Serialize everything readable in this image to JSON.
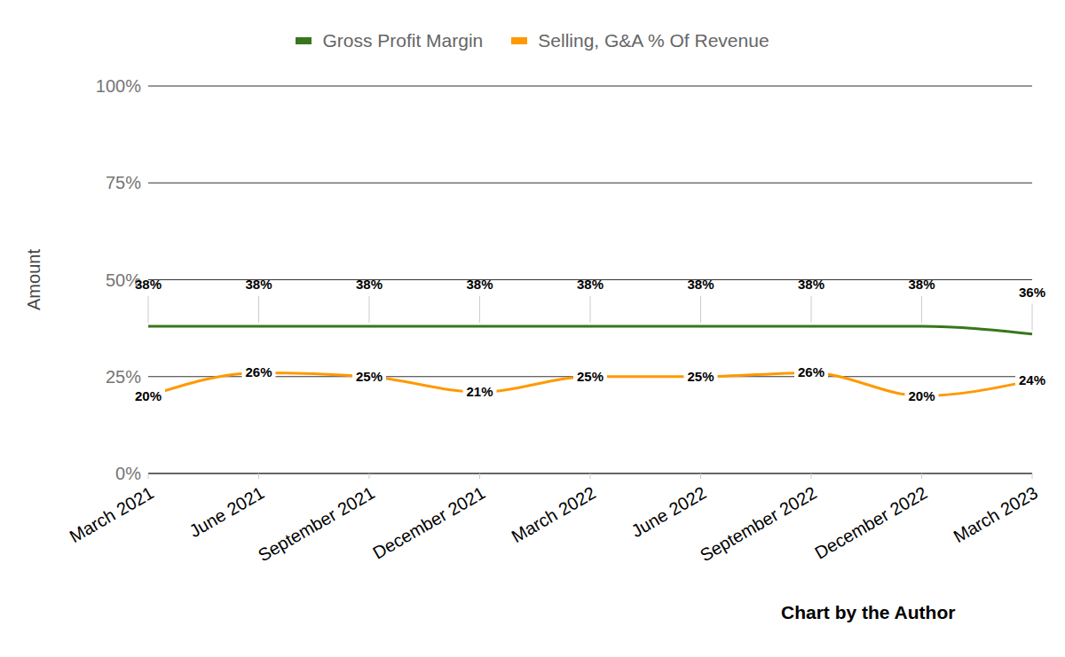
{
  "chart_data": {
    "type": "line",
    "categories": [
      "March 2021",
      "June 2021",
      "September 2021",
      "December 2021",
      "March 2022",
      "June 2022",
      "September 2022",
      "December 2022",
      "March 2023"
    ],
    "series": [
      {
        "name": "Gross Profit Margin",
        "color": "#38761d",
        "values": [
          38,
          38,
          38,
          38,
          38,
          38,
          38,
          38,
          36
        ],
        "value_labels": [
          "38%",
          "38%",
          "38%",
          "38%",
          "38%",
          "38%",
          "38%",
          "38%",
          "36%"
        ]
      },
      {
        "name": "Selling, G&A % Of Revenue",
        "color": "#ff9900",
        "values": [
          20,
          26,
          25,
          21,
          25,
          25,
          26,
          20,
          24
        ],
        "value_labels": [
          "20%",
          "26%",
          "25%",
          "21%",
          "25%",
          "25%",
          "26%",
          "20%",
          "24%"
        ]
      }
    ],
    "y_label": "Amount",
    "ylim": [
      0,
      100
    ],
    "yticks": [
      {
        "value": 0,
        "label": "0%"
      },
      {
        "value": 25,
        "label": "25%"
      },
      {
        "value": 50,
        "label": "50%"
      },
      {
        "value": 75,
        "label": "75%"
      },
      {
        "value": 100,
        "label": "100%"
      }
    ],
    "grid": true,
    "legend": "top",
    "data_labels": true,
    "marker": "none",
    "line_style": "solid",
    "annotations": [
      "Chart by the Author"
    ]
  }
}
